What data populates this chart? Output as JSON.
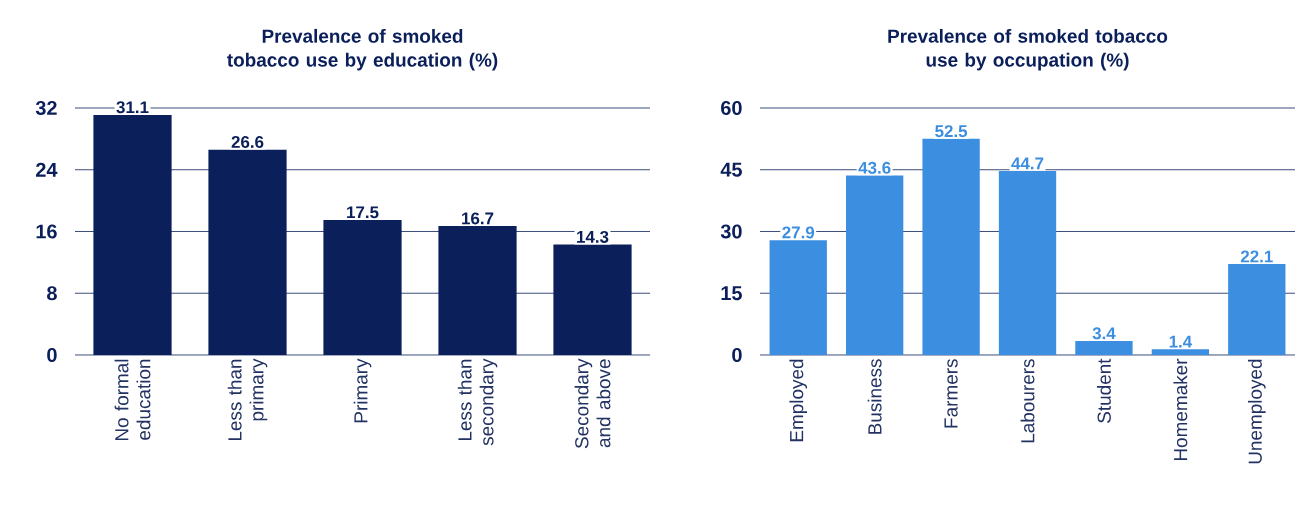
{
  "chart_data": [
    {
      "type": "bar",
      "title": "Prevalence of smoked tobacco use by education (%)",
      "categories": [
        "No formal education",
        "Less than primary",
        "Primary",
        "Less than secondary",
        "Secondary and above"
      ],
      "values": [
        31.1,
        26.6,
        17.5,
        16.7,
        14.3
      ],
      "color": "#0b1f5b",
      "ylim": [
        0,
        32
      ],
      "yticks": [
        0,
        8,
        16,
        24,
        32
      ],
      "grid": "y",
      "data_labels": true
    },
    {
      "type": "bar",
      "title": "Prevalence of smoked tobacco use by occupation (%)",
      "categories": [
        "Employed",
        "Business",
        "Farmers",
        "Labourers",
        "Student",
        "Homemaker",
        "Unemployed"
      ],
      "values": [
        27.9,
        43.6,
        52.5,
        44.7,
        3.4,
        1.4,
        22.1
      ],
      "color": "#3b8ee0",
      "ylim": [
        0,
        60
      ],
      "yticks": [
        0,
        15,
        30,
        45,
        60
      ],
      "grid": "y",
      "data_labels": true
    }
  ]
}
